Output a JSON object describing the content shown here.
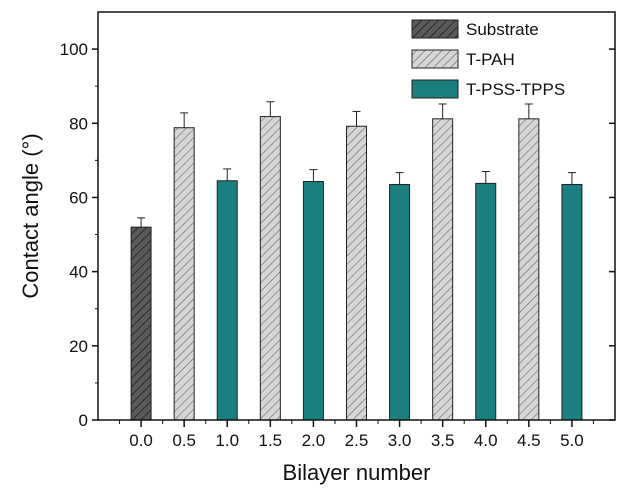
{
  "chart_data": {
    "type": "bar",
    "xlabel": "Bilayer number",
    "ylabel": "Contact angle (°)",
    "categories": [
      "0.0",
      "0.5",
      "1.0",
      "1.5",
      "2.0",
      "2.5",
      "3.0",
      "3.5",
      "4.0",
      "4.5",
      "5.0"
    ],
    "values": [
      52,
      78.8,
      64.5,
      81.8,
      64.3,
      79.2,
      63.5,
      81.2,
      63.8,
      81.2,
      63.5
    ],
    "errors": [
      2.5,
      4.0,
      3.2,
      4.0,
      3.2,
      4.0,
      3.2,
      4.0,
      3.2,
      4.0,
      3.2
    ],
    "groups": [
      "Substrate",
      "T-PAH",
      "T-PSS-TPPS",
      "T-PAH",
      "T-PSS-TPPS",
      "T-PAH",
      "T-PSS-TPPS",
      "T-PAH",
      "T-PSS-TPPS",
      "T-PAH",
      "T-PSS-TPPS"
    ],
    "ylim": [
      0,
      110
    ],
    "yticks": [
      0,
      20,
      40,
      60,
      80,
      100
    ],
    "legend": [
      {
        "name": "Substrate",
        "color": "#5a5a5a",
        "hatch": true
      },
      {
        "name": "T-PAH",
        "color": "#d6d6d6",
        "hatch": true
      },
      {
        "name": "T-PSS-TPPS",
        "color": "#1b7f7f",
        "hatch": false
      }
    ],
    "legend_position": "top-right",
    "grid": false
  }
}
